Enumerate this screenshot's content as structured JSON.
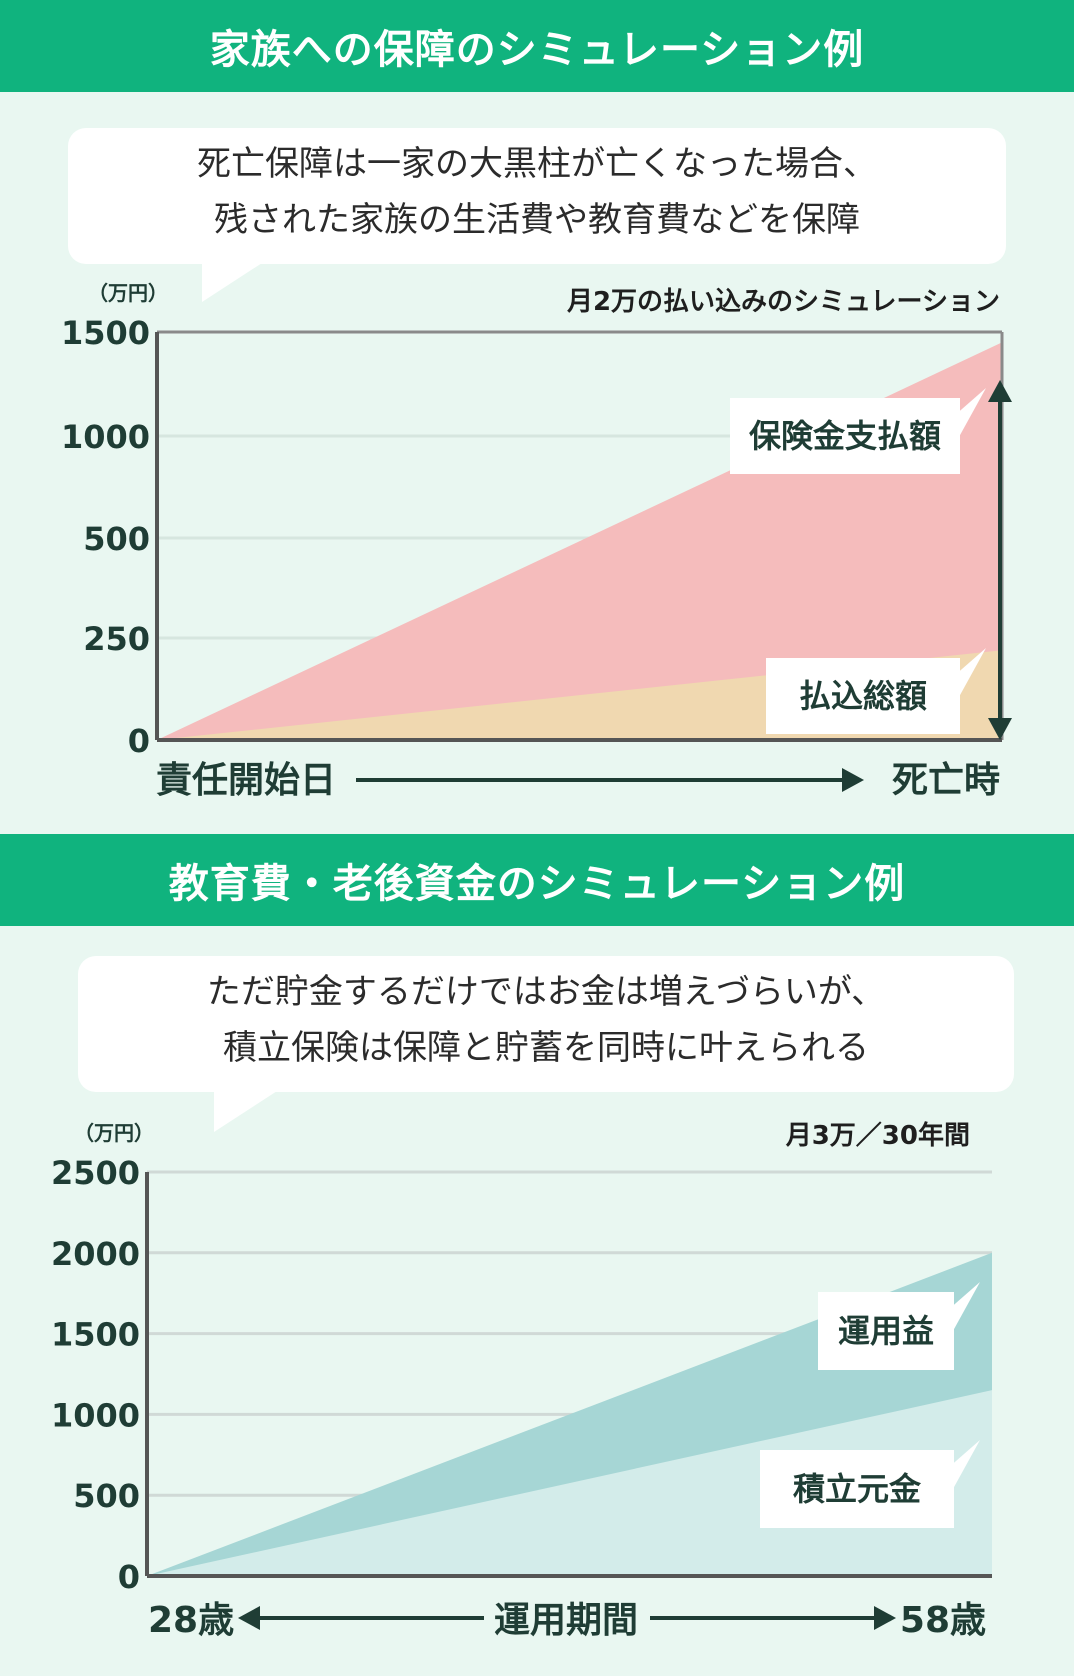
{
  "section1": {
    "title": "家族への保障のシミュレーション例",
    "bubble_lines": [
      "死亡保障は一家の大黒柱が亡くなった場合、",
      "残された家族の生活費や教育費などを保障"
    ]
  },
  "section2": {
    "title": "教育費・老後資金のシミュレーション例",
    "bubble_lines": [
      "ただ貯金するだけではお金は増えづらいが、",
      "積立保険は保障と貯蓄を同時に叶えられる"
    ]
  },
  "chart_data": [
    {
      "type": "area",
      "title": "月2万の払い込みのシミュレーション",
      "y_unit": "（万円）",
      "y_ticks": [
        0,
        250,
        500,
        1000,
        1500
      ],
      "x_start_label": "責任開始日",
      "x_end_label": "死亡時",
      "x": [
        0,
        1
      ],
      "series": [
        {
          "name": "払込総額",
          "values": [
            0,
            220
          ],
          "color": "#f0d8b0"
        },
        {
          "name": "保険金支払額",
          "values": [
            0,
            1450
          ],
          "color": "#f5bcbc"
        }
      ],
      "grid": true,
      "double_arrow_at_end": true,
      "colors": {
        "grid": "#d6e6df",
        "axis": "#555555",
        "arrow": "#1f3d35"
      }
    },
    {
      "type": "area",
      "title": "月3万／30年間",
      "y_unit": "（万円）",
      "y_ticks": [
        0,
        500,
        1000,
        1500,
        2000,
        2500
      ],
      "ylim": [
        0,
        2500
      ],
      "x_start_label": "28歳",
      "x_mid_label": "運用期間",
      "x_end_label": "58歳",
      "x": [
        28,
        58
      ],
      "series": [
        {
          "name": "積立元金",
          "values": [
            0,
            1150
          ],
          "color": "#d3ecea"
        },
        {
          "name": "運用益",
          "values": [
            0,
            2000
          ],
          "color": "#a6d6d5"
        }
      ],
      "grid": true,
      "colors": {
        "grid": "#d0d9d6",
        "axis": "#555555",
        "arrow": "#1f3d35"
      }
    }
  ]
}
